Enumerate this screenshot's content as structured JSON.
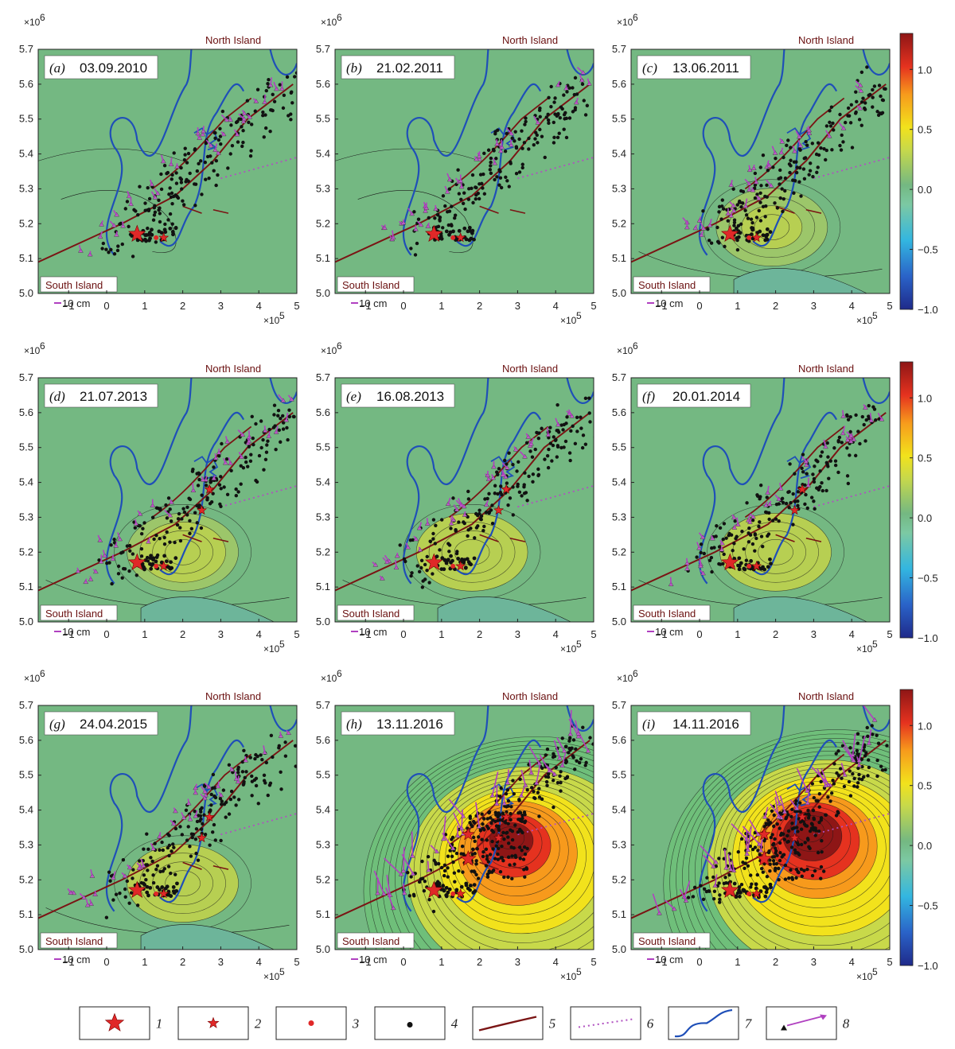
{
  "colorbar": {
    "ticks": [
      {
        "label": "1.0",
        "value": 1.0
      },
      {
        "label": "0.5",
        "value": 0.5
      },
      {
        "label": "0.0",
        "value": 0.0
      },
      {
        "label": "−0.5",
        "value": -0.5
      },
      {
        "label": "−1.0",
        "value": -1.0
      }
    ],
    "range": [
      -1.0,
      1.3
    ],
    "colors": [
      "#1f2a8a",
      "#2a63c8",
      "#33b6e0",
      "#7cc9a3",
      "#6fbf7a",
      "#c8d94a",
      "#f2e21c",
      "#f79a1c",
      "#e5321f",
      "#8e1616"
    ]
  },
  "chart_data": {
    "type": "contour-map",
    "panel_count": 9,
    "x_axis": {
      "ticks": [
        "−1",
        "0",
        "1",
        "2",
        "3",
        "4",
        "5"
      ],
      "values": [
        -1,
        0,
        1,
        2,
        3,
        4,
        5
      ],
      "exponent_label": "×10",
      "exponent": "5",
      "range": [
        -1.8,
        5
      ]
    },
    "y_axis": {
      "ticks": [
        "5.0",
        "5.1",
        "5.2",
        "5.3",
        "5.4",
        "5.5",
        "5.6",
        "5.7"
      ],
      "values": [
        5.0,
        5.1,
        5.2,
        5.3,
        5.4,
        5.5,
        5.6,
        5.7
      ],
      "exponent_label": "×10",
      "exponent": "6",
      "range": [
        5.0,
        5.7
      ]
    },
    "place_labels": {
      "north": "North Island",
      "south": "South Island"
    },
    "scale_label": "10 cm",
    "background_color": "#74b882",
    "panels": [
      {
        "letter": "(a)",
        "date": "03.09.2010",
        "peak": 0.0,
        "hot_x": 3.0,
        "hot_y": 5.3
      },
      {
        "letter": "(b)",
        "date": "21.02.2011",
        "peak": 0.0,
        "hot_x": 3.0,
        "hot_y": 5.3
      },
      {
        "letter": "(c)",
        "date": "13.06.2011",
        "peak": 0.12,
        "hot_x": 1.9,
        "hot_y": 5.19
      },
      {
        "letter": "(d)",
        "date": "21.07.2013",
        "peak": 0.18,
        "hot_x": 2.0,
        "hot_y": 5.2
      },
      {
        "letter": "(e)",
        "date": "16.08.2013",
        "peak": 0.22,
        "hot_x": 1.8,
        "hot_y": 5.2
      },
      {
        "letter": "(f)",
        "date": "20.01.2014",
        "peak": 0.2,
        "hot_x": 2.0,
        "hot_y": 5.2
      },
      {
        "letter": "(g)",
        "date": "24.04.2015",
        "peak": 0.2,
        "hot_x": 2.0,
        "hot_y": 5.19
      },
      {
        "letter": "(h)",
        "date": "13.11.2016",
        "peak": 1.2,
        "hot_x": 2.8,
        "hot_y": 5.32
      },
      {
        "letter": "(i)",
        "date": "14.11.2016",
        "peak": 1.3,
        "hot_x": 2.9,
        "hot_y": 5.34
      }
    ]
  },
  "legend": {
    "items": [
      {
        "number": "1",
        "symbol": "large-red-star"
      },
      {
        "number": "2",
        "symbol": "small-red-star"
      },
      {
        "number": "3",
        "symbol": "red-dot"
      },
      {
        "number": "4",
        "symbol": "black-dot"
      },
      {
        "number": "5",
        "symbol": "dark-red-curve"
      },
      {
        "number": "6",
        "symbol": "dotted-magenta-line"
      },
      {
        "number": "7",
        "symbol": "blue-coastline"
      },
      {
        "number": "8",
        "symbol": "triangle-arrow"
      }
    ]
  }
}
